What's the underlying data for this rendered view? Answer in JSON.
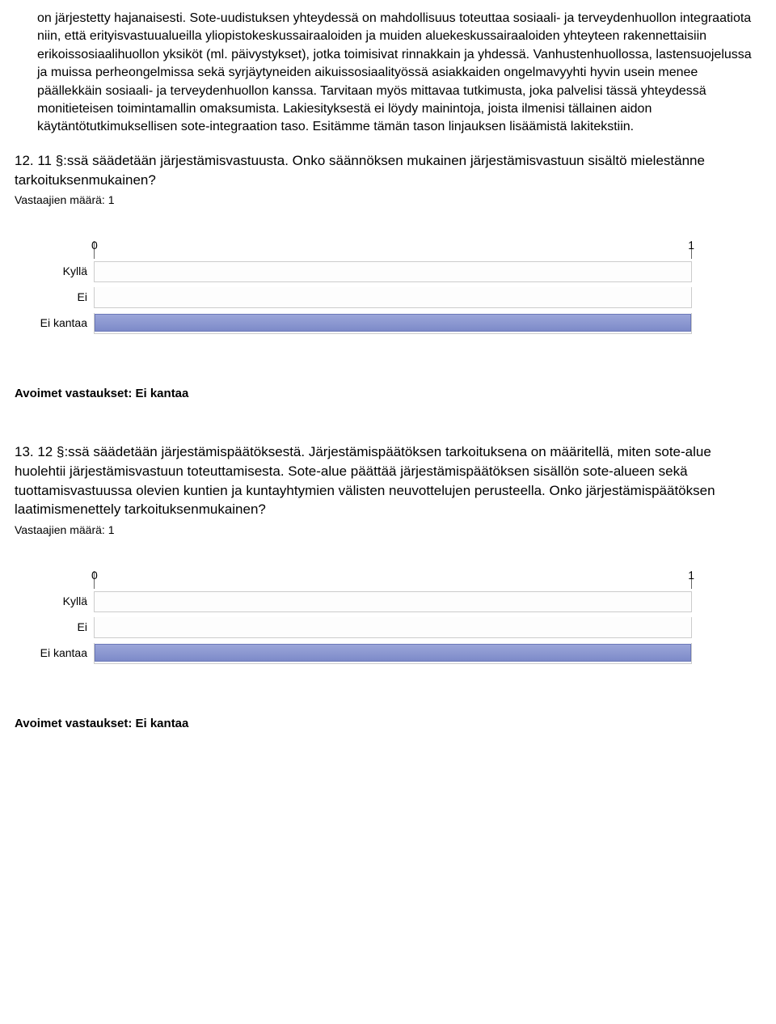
{
  "intro_paragraph": "on järjestetty hajanaisesti. Sote-uudistuksen yhteydessä on mahdollisuus toteuttaa sosiaali- ja terveydenhuollon integraatiota niin, että erityisvastuualueilla yliopistokeskussairaaloiden ja muiden aluekeskussairaaloiden yhteyteen rakennettaisiin erikoissosiaalihuollon yksiköt (ml. päivystykset), jotka toimisivat rinnakkain ja yhdessä. Vanhustenhuollossa, lastensuojelussa ja muissa perheongelmissa sekä syrjäytyneiden aikuissosiaalityössä asiakkaiden ongelmavyyhti hyvin usein menee päällekkäin sosiaali- ja terveydenhuollon kanssa. Tarvitaan myös mittavaa tutkimusta, joka palvelisi tässä yhteydessä monitieteisen toimintamallin omaksumista. Lakiesityksestä ei löydy mainintoja, joista ilmenisi tällainen aidon käytäntötutkimuksellisen sote-integraation taso. Esitämme tämän tason linjauksen lisäämistä lakitekstiin.",
  "q12": {
    "title": "12. 11 §:ssä säädetään järjestämisvastuusta. Onko säännöksen mukainen järjestämisvastuun sisältö mielestänne tarkoituksenmukainen?",
    "respondents": "Vastaajien määrä: 1",
    "chart": {
      "type": "bar",
      "xmin": 0,
      "xmax": 1,
      "tick_left": "0",
      "tick_right": "1",
      "categories": [
        "Kyllä",
        "Ei",
        "Ei kantaa"
      ],
      "values": [
        0,
        0,
        1
      ],
      "bar_fill_top": "#9ba6d9",
      "bar_fill_bottom": "#7d8ac9",
      "bar_border": "#6b78b8",
      "track_bg": "#fdfdfd",
      "track_border": "#cccccc"
    },
    "open_heading": "Avoimet vastaukset: Ei kantaa"
  },
  "q13": {
    "title": "13. 12 §:ssä säädetään järjestämispäätöksestä. Järjestämispäätöksen tarkoituksena on määritellä, miten sote-alue huolehtii järjestämisvastuun toteuttamisesta. Sote-alue päättää järjestämispäätöksen sisällön sote-alueen sekä tuottamisvastuussa olevien kuntien ja kuntayhtymien välisten neuvottelujen perusteella. Onko järjestämispäätöksen laatimismenettely tarkoituksenmukainen?",
    "respondents": "Vastaajien määrä: 1",
    "chart": {
      "type": "bar",
      "xmin": 0,
      "xmax": 1,
      "tick_left": "0",
      "tick_right": "1",
      "categories": [
        "Kyllä",
        "Ei",
        "Ei kantaa"
      ],
      "values": [
        0,
        0,
        1
      ],
      "bar_fill_top": "#9ba6d9",
      "bar_fill_bottom": "#7d8ac9",
      "bar_border": "#6b78b8",
      "track_bg": "#fdfdfd",
      "track_border": "#cccccc"
    },
    "open_heading": "Avoimet vastaukset: Ei kantaa"
  }
}
